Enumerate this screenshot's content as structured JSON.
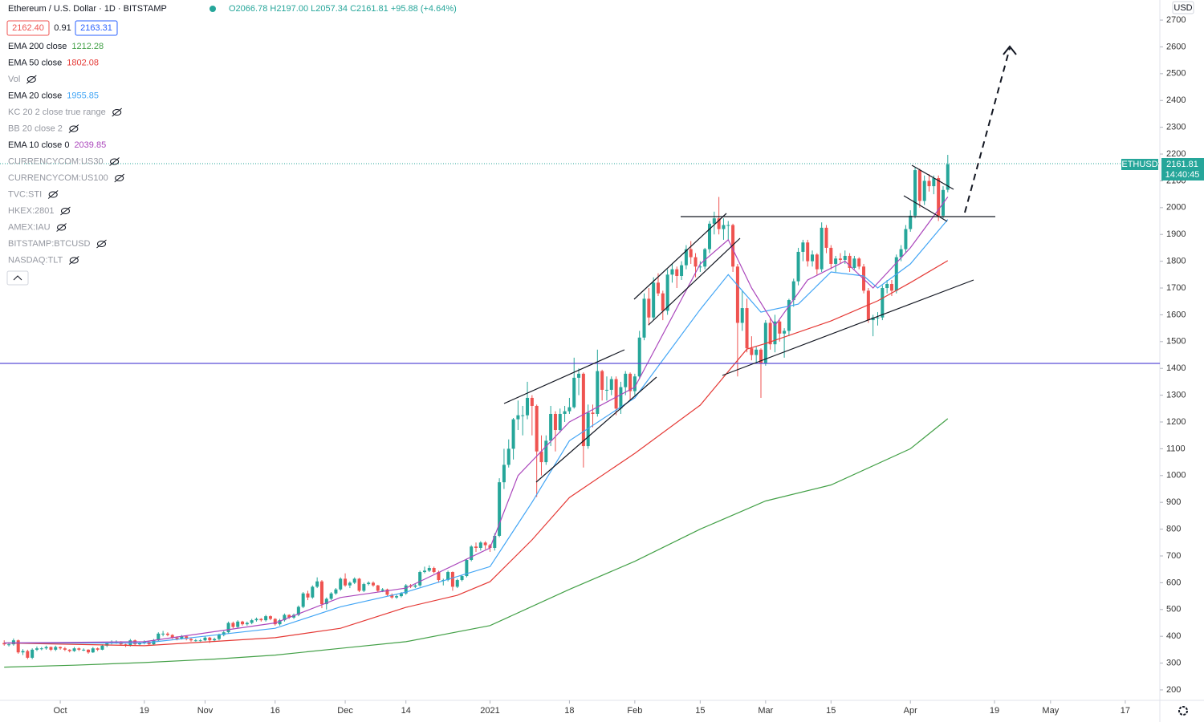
{
  "chart_data": {
    "type": "candlestick",
    "title": "Ethereum / U.S. Dollar · 1D · BITSTAMP",
    "ohlc_text": "O2066.78 H2197.00 L2057.34 C2161.81 +95.88 (+4.64%)",
    "quote": {
      "bid": "2162.40",
      "spread": "0.91",
      "ask": "2163.31"
    },
    "symbol": "ETHUSD",
    "countdown": "14:40:45",
    "currency": "USD",
    "up_color": "#26a69a",
    "down_color": "#ef5350",
    "grid": false,
    "ylim": [
      161,
      2775
    ],
    "yticks": [
      200,
      300,
      400,
      500,
      600,
      700,
      800,
      900,
      1000,
      1100,
      1200,
      1300,
      1400,
      1500,
      1600,
      1700,
      1800,
      1900,
      2000,
      2100,
      2200,
      2300,
      2400,
      2500,
      2600,
      2700
    ],
    "xlim": [
      -0.9,
      247.4
    ],
    "xticks": [
      {
        "value": 12,
        "label": "Oct"
      },
      {
        "value": 30,
        "label": "19"
      },
      {
        "value": 43,
        "label": "Nov"
      },
      {
        "value": 58,
        "label": "16"
      },
      {
        "value": 73,
        "label": "Dec"
      },
      {
        "value": 86,
        "label": "14"
      },
      {
        "value": 104,
        "label": "2021"
      },
      {
        "value": 121,
        "label": "18"
      },
      {
        "value": 135,
        "label": "Feb"
      },
      {
        "value": 149,
        "label": "15"
      },
      {
        "value": 163,
        "label": "Mar"
      },
      {
        "value": 177,
        "label": "15"
      },
      {
        "value": 194,
        "label": "Apr"
      },
      {
        "value": 212,
        "label": "19"
      },
      {
        "value": 224,
        "label": "May"
      },
      {
        "value": 240,
        "label": "17"
      }
    ],
    "candles": [
      [
        375,
        385,
        365,
        370
      ],
      [
        370,
        378,
        362,
        370
      ],
      [
        370,
        392,
        365,
        385
      ],
      [
        385,
        388,
        335,
        340
      ],
      [
        340,
        352,
        330,
        345
      ],
      [
        345,
        350,
        315,
        320
      ],
      [
        320,
        355,
        315,
        350
      ],
      [
        350,
        362,
        345,
        355
      ],
      [
        355,
        360,
        348,
        355
      ],
      [
        355,
        365,
        350,
        360
      ],
      [
        360,
        362,
        345,
        350
      ],
      [
        350,
        365,
        345,
        360
      ],
      [
        360,
        362,
        350,
        355
      ],
      [
        355,
        360,
        345,
        350
      ],
      [
        350,
        352,
        340,
        345
      ],
      [
        345,
        360,
        342,
        355
      ],
      [
        355,
        358,
        345,
        350
      ],
      [
        350,
        355,
        345,
        350
      ],
      [
        350,
        352,
        335,
        340
      ],
      [
        340,
        360,
        338,
        355
      ],
      [
        355,
        358,
        345,
        350
      ],
      [
        350,
        370,
        348,
        365
      ],
      [
        365,
        380,
        360,
        375
      ],
      [
        375,
        385,
        370,
        380
      ],
      [
        380,
        385,
        372,
        380
      ],
      [
        380,
        382,
        365,
        370
      ],
      [
        370,
        372,
        360,
        365
      ],
      [
        365,
        390,
        362,
        385
      ],
      [
        385,
        388,
        365,
        370
      ],
      [
        370,
        380,
        365,
        375
      ],
      [
        375,
        385,
        370,
        380
      ],
      [
        380,
        383,
        365,
        370
      ],
      [
        370,
        390,
        368,
        385
      ],
      [
        385,
        415,
        382,
        410
      ],
      [
        410,
        420,
        400,
        410
      ],
      [
        410,
        415,
        400,
        405
      ],
      [
        405,
        408,
        390,
        395
      ],
      [
        395,
        400,
        385,
        390
      ],
      [
        390,
        405,
        388,
        400
      ],
      [
        400,
        402,
        385,
        390
      ],
      [
        390,
        395,
        380,
        385
      ],
      [
        385,
        390,
        380,
        385
      ],
      [
        385,
        390,
        380,
        385
      ],
      [
        385,
        400,
        382,
        395
      ],
      [
        395,
        398,
        375,
        385
      ],
      [
        385,
        395,
        380,
        390
      ],
      [
        390,
        410,
        385,
        405
      ],
      [
        405,
        420,
        400,
        415
      ],
      [
        415,
        455,
        410,
        450
      ],
      [
        450,
        455,
        430,
        435
      ],
      [
        435,
        460,
        430,
        455
      ],
      [
        455,
        458,
        440,
        445
      ],
      [
        445,
        455,
        440,
        450
      ],
      [
        450,
        465,
        445,
        460
      ],
      [
        460,
        470,
        455,
        465
      ],
      [
        465,
        468,
        455,
        460
      ],
      [
        460,
        480,
        455,
        475
      ],
      [
        475,
        478,
        460,
        465
      ],
      [
        465,
        468,
        440,
        445
      ],
      [
        445,
        465,
        440,
        460
      ],
      [
        460,
        485,
        455,
        480
      ],
      [
        480,
        482,
        465,
        470
      ],
      [
        470,
        485,
        465,
        480
      ],
      [
        480,
        515,
        475,
        510
      ],
      [
        510,
        565,
        505,
        560
      ],
      [
        560,
        570,
        535,
        545
      ],
      [
        545,
        590,
        540,
        585
      ],
      [
        585,
        620,
        580,
        605
      ],
      [
        605,
        610,
        505,
        520
      ],
      [
        520,
        545,
        500,
        540
      ],
      [
        540,
        565,
        535,
        560
      ],
      [
        560,
        580,
        555,
        575
      ],
      [
        575,
        620,
        570,
        615
      ],
      [
        615,
        635,
        585,
        590
      ],
      [
        590,
        605,
        580,
        600
      ],
      [
        600,
        620,
        595,
        615
      ],
      [
        615,
        618,
        565,
        570
      ],
      [
        570,
        600,
        565,
        595
      ],
      [
        595,
        605,
        590,
        600
      ],
      [
        600,
        605,
        585,
        590
      ],
      [
        590,
        592,
        565,
        570
      ],
      [
        570,
        580,
        565,
        575
      ],
      [
        575,
        578,
        550,
        555
      ],
      [
        555,
        560,
        540,
        545
      ],
      [
        545,
        555,
        540,
        550
      ],
      [
        550,
        565,
        545,
        560
      ],
      [
        560,
        595,
        555,
        590
      ],
      [
        590,
        595,
        580,
        585
      ],
      [
        585,
        595,
        580,
        590
      ],
      [
        590,
        645,
        585,
        640
      ],
      [
        640,
        660,
        635,
        645
      ],
      [
        645,
        665,
        640,
        655
      ],
      [
        655,
        660,
        635,
        640
      ],
      [
        640,
        645,
        600,
        610
      ],
      [
        610,
        615,
        590,
        610
      ],
      [
        610,
        645,
        605,
        640
      ],
      [
        640,
        642,
        570,
        585
      ],
      [
        585,
        615,
        580,
        610
      ],
      [
        610,
        630,
        605,
        625
      ],
      [
        625,
        690,
        620,
        685
      ],
      [
        685,
        740,
        680,
        735
      ],
      [
        735,
        750,
        715,
        730
      ],
      [
        730,
        755,
        720,
        750
      ],
      [
        750,
        755,
        725,
        740
      ],
      [
        740,
        745,
        715,
        730
      ],
      [
        730,
        785,
        720,
        775
      ],
      [
        775,
        990,
        770,
        975
      ],
      [
        975,
        1100,
        950,
        1040
      ],
      [
        1040,
        1135,
        1030,
        1100
      ],
      [
        1100,
        1215,
        1060,
        1210
      ],
      [
        1210,
        1280,
        1170,
        1225
      ],
      [
        1225,
        1260,
        1150,
        1225
      ],
      [
        1225,
        1350,
        1210,
        1290
      ],
      [
        1290,
        1300,
        1150,
        1260
      ],
      [
        1260,
        1265,
        920,
        1090
      ],
      [
        1090,
        1150,
        1000,
        1050
      ],
      [
        1050,
        1150,
        1040,
        1130
      ],
      [
        1130,
        1260,
        1110,
        1230
      ],
      [
        1230,
        1240,
        1090,
        1170
      ],
      [
        1170,
        1250,
        1160,
        1230
      ],
      [
        1230,
        1260,
        1200,
        1240
      ],
      [
        1240,
        1290,
        1230,
        1255
      ],
      [
        1255,
        1440,
        1250,
        1365
      ],
      [
        1365,
        1400,
        1300,
        1380
      ],
      [
        1380,
        1385,
        1030,
        1110
      ],
      [
        1110,
        1265,
        1100,
        1235
      ],
      [
        1235,
        1265,
        1180,
        1230
      ],
      [
        1230,
        1470,
        1220,
        1390
      ],
      [
        1390,
        1395,
        1280,
        1320
      ],
      [
        1320,
        1370,
        1280,
        1320
      ],
      [
        1320,
        1370,
        1300,
        1360
      ],
      [
        1360,
        1370,
        1225,
        1250
      ],
      [
        1250,
        1350,
        1230,
        1330
      ],
      [
        1330,
        1390,
        1300,
        1380
      ],
      [
        1380,
        1385,
        1280,
        1315
      ],
      [
        1315,
        1380,
        1300,
        1370
      ],
      [
        1370,
        1540,
        1360,
        1515
      ],
      [
        1515,
        1680,
        1505,
        1660
      ],
      [
        1660,
        1700,
        1560,
        1590
      ],
      [
        1590,
        1740,
        1580,
        1720
      ],
      [
        1720,
        1755,
        1670,
        1680
      ],
      [
        1680,
        1690,
        1580,
        1615
      ],
      [
        1615,
        1770,
        1600,
        1750
      ],
      [
        1750,
        1790,
        1720,
        1770
      ],
      [
        1770,
        1780,
        1700,
        1745
      ],
      [
        1745,
        1800,
        1730,
        1785
      ],
      [
        1785,
        1860,
        1770,
        1845
      ],
      [
        1845,
        1875,
        1790,
        1815
      ],
      [
        1815,
        1830,
        1740,
        1780
      ],
      [
        1780,
        1800,
        1760,
        1780
      ],
      [
        1780,
        1850,
        1770,
        1845
      ],
      [
        1845,
        1950,
        1830,
        1940
      ],
      [
        1940,
        1985,
        1900,
        1960
      ],
      [
        1960,
        2040,
        1900,
        1920
      ],
      [
        1920,
        1960,
        1880,
        1935
      ],
      [
        1935,
        1950,
        1880,
        1935
      ],
      [
        1935,
        1940,
        1760,
        1780
      ],
      [
        1780,
        1790,
        1370,
        1570
      ],
      [
        1570,
        1690,
        1540,
        1625
      ],
      [
        1625,
        1660,
        1460,
        1475
      ],
      [
        1475,
        1520,
        1430,
        1450
      ],
      [
        1450,
        1480,
        1420,
        1470
      ],
      [
        1470,
        1475,
        1290,
        1420
      ],
      [
        1420,
        1580,
        1410,
        1570
      ],
      [
        1570,
        1590,
        1470,
        1490
      ],
      [
        1490,
        1600,
        1460,
        1575
      ],
      [
        1575,
        1580,
        1500,
        1530
      ],
      [
        1530,
        1550,
        1440,
        1540
      ],
      [
        1540,
        1660,
        1520,
        1655
      ],
      [
        1655,
        1735,
        1630,
        1725
      ],
      [
        1725,
        1850,
        1710,
        1835
      ],
      [
        1835,
        1880,
        1800,
        1870
      ],
      [
        1870,
        1880,
        1780,
        1800
      ],
      [
        1800,
        1840,
        1780,
        1825
      ],
      [
        1825,
        1830,
        1750,
        1770
      ],
      [
        1770,
        1945,
        1760,
        1925
      ],
      [
        1925,
        1935,
        1830,
        1850
      ],
      [
        1850,
        1860,
        1770,
        1790
      ],
      [
        1790,
        1820,
        1760,
        1810
      ],
      [
        1810,
        1830,
        1790,
        1805
      ],
      [
        1805,
        1840,
        1790,
        1820
      ],
      [
        1820,
        1830,
        1760,
        1775
      ],
      [
        1775,
        1820,
        1770,
        1810
      ],
      [
        1810,
        1815,
        1770,
        1780
      ],
      [
        1780,
        1790,
        1680,
        1690
      ],
      [
        1690,
        1700,
        1570,
        1580
      ],
      [
        1580,
        1600,
        1520,
        1590
      ],
      [
        1590,
        1610,
        1560,
        1590
      ],
      [
        1590,
        1710,
        1580,
        1700
      ],
      [
        1700,
        1730,
        1680,
        1715
      ],
      [
        1715,
        1730,
        1670,
        1690
      ],
      [
        1690,
        1825,
        1680,
        1815
      ],
      [
        1815,
        1860,
        1800,
        1845
      ],
      [
        1845,
        1935,
        1830,
        1920
      ],
      [
        1920,
        1990,
        1910,
        1970
      ],
      [
        1970,
        2150,
        1960,
        2140
      ],
      [
        2140,
        2145,
        2000,
        2025
      ],
      [
        2025,
        2120,
        2010,
        2100
      ],
      [
        2100,
        2125,
        2060,
        2080
      ],
      [
        2080,
        2120,
        2050,
        2110
      ],
      [
        2110,
        2120,
        1950,
        1970
      ],
      [
        1970,
        2080,
        1960,
        2065.93
      ],
      [
        2066.78,
        2197,
        2057.34,
        2161.81
      ]
    ],
    "series": [
      {
        "name": "EMA 200 close",
        "color": "#43a047",
        "x": [
          0,
          15,
          30,
          45,
          58,
          72,
          86,
          104,
          121,
          135,
          149,
          163,
          177,
          194,
          202
        ],
        "values": [
          285,
          292,
          302,
          315,
          330,
          355,
          380,
          440,
          575,
          680,
          800,
          905,
          965,
          1100,
          1212.28
        ]
      },
      {
        "name": "EMA 50 close",
        "color": "#e53935",
        "x": [
          0,
          30,
          58,
          72,
          86,
          97,
          104,
          113,
          121,
          135,
          149,
          159,
          163,
          177,
          187,
          194,
          202
        ],
        "values": [
          375,
          365,
          395,
          430,
          508,
          553,
          604,
          760,
          918,
          1083,
          1263,
          1472,
          1493,
          1577,
          1652,
          1720,
          1802.08
        ]
      },
      {
        "name": "Vol",
        "hidden": true
      },
      {
        "name": "EMA 20 close",
        "color": "#42a5f5",
        "x": [
          0,
          30,
          58,
          72,
          86,
          104,
          113,
          121,
          135,
          149,
          155,
          162,
          170,
          177,
          184,
          187,
          194,
          202
        ],
        "values": [
          375,
          375,
          430,
          510,
          565,
          660,
          900,
          1130,
          1290,
          1620,
          1750,
          1610,
          1640,
          1760,
          1745,
          1700,
          1790,
          1955.85
        ]
      },
      {
        "name": "KC 20 2 close true range",
        "hidden": true
      },
      {
        "name": "BB 20 close 2",
        "hidden": true
      },
      {
        "name": "EMA 10 close 0",
        "color": "#ab47bc",
        "x": [
          0,
          30,
          58,
          72,
          86,
          104,
          110,
          121,
          135,
          149,
          155,
          160,
          165,
          172,
          180,
          186,
          194,
          202
        ],
        "values": [
          375,
          380,
          450,
          545,
          580,
          730,
          1000,
          1200,
          1330,
          1790,
          1880,
          1700,
          1560,
          1730,
          1800,
          1700,
          1850,
          2039.85
        ]
      },
      {
        "name": "CURRENCYCOM:US30",
        "hidden": true
      },
      {
        "name": "CURRENCYCOM:US100",
        "hidden": true
      },
      {
        "name": "TVC:STI",
        "hidden": true
      },
      {
        "name": "HKEX:2801",
        "hidden": true
      },
      {
        "name": "AMEX:IAU",
        "hidden": true
      },
      {
        "name": "BITSTAMP:BTCUSD",
        "hidden": true
      },
      {
        "name": "NASDAQ:TLT",
        "hidden": true
      }
    ]
  }
}
